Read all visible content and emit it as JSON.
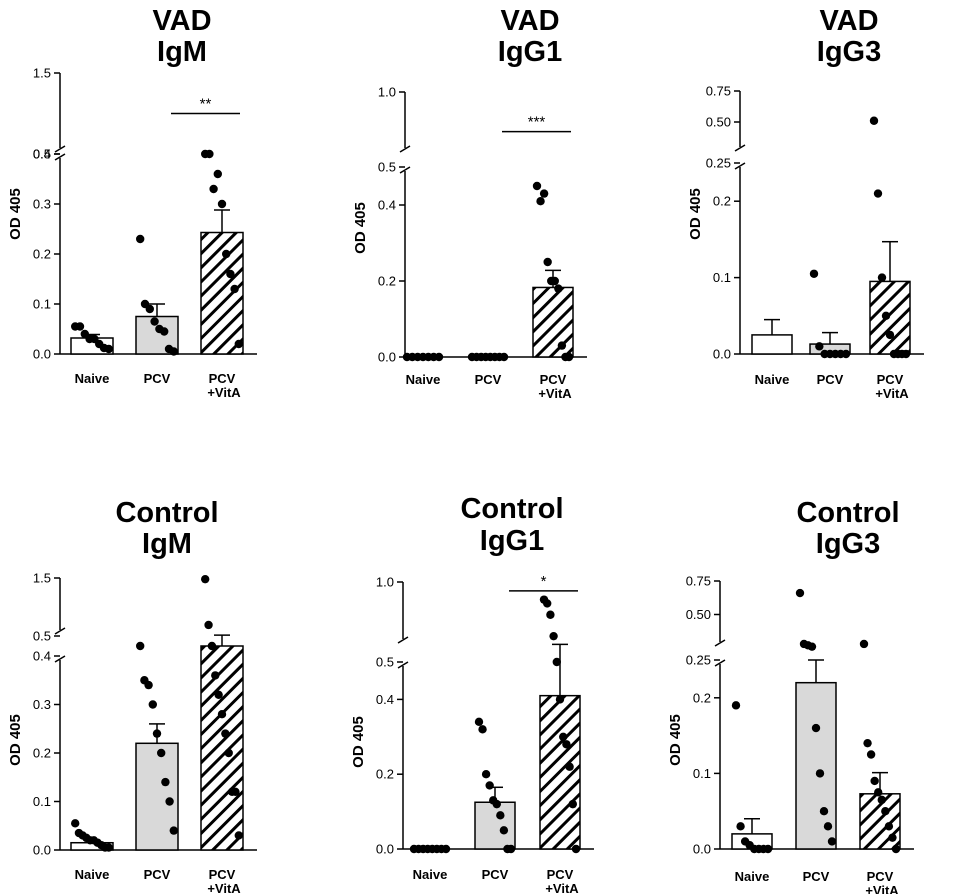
{
  "colors": {
    "naive": "#ffffff",
    "pcv": "#d9d9d9",
    "vita_hatch": "#000000",
    "ink": "#000000"
  },
  "chart_data": [
    {
      "type": "bar",
      "title_line1": "VAD",
      "title_line2": "IgM",
      "ylabel": "OD 405",
      "categories": [
        "Naive",
        "PCV",
        "PCV",
        "+VitA"
      ],
      "groups": [
        {
          "label": "Naive",
          "label2": "",
          "mean": 0.032,
          "sem": 0.007,
          "points": [
            0.055,
            0.055,
            0.04,
            0.03,
            0.03,
            0.02,
            0.012,
            0.01
          ]
        },
        {
          "label": "PCV",
          "label2": "",
          "mean": 0.075,
          "sem": 0.025,
          "points": [
            0.23,
            0.1,
            0.09,
            0.065,
            0.05,
            0.045,
            0.01,
            0.005
          ]
        },
        {
          "label": "PCV",
          "label2": "+VitA",
          "mean": 0.243,
          "sem": 0.045,
          "points": [
            0.48,
            0.47,
            0.33,
            0.36,
            0.3,
            0.2,
            0.16,
            0.13,
            0.02
          ]
        }
      ],
      "axis": {
        "lower": {
          "range": [
            0,
            0.4
          ],
          "ticks": [
            0.0,
            0.1,
            0.2,
            0.3,
            0.4
          ],
          "labels": [
            "0.0",
            "0.1",
            "0.2",
            "0.3",
            "0.4"
          ]
        },
        "upper": {
          "range": [
            0.5,
            1.5
          ],
          "ticks": [
            0.5,
            1.5
          ],
          "labels": [
            "0.5",
            "1.5"
          ]
        }
      },
      "significance": {
        "label": "**",
        "from": 1,
        "to": 2,
        "level": 1.0
      }
    },
    {
      "type": "bar",
      "title_line1": "VAD",
      "title_line2": "IgG1",
      "ylabel": "OD 405",
      "categories": [
        "Naive",
        "PCV",
        "PCV",
        "+VitA"
      ],
      "groups": [
        {
          "label": "Naive",
          "label2": "",
          "mean": 0,
          "sem": 0,
          "points": [
            0,
            0,
            0,
            0,
            0,
            0,
            0
          ]
        },
        {
          "label": "PCV",
          "label2": "",
          "mean": 0,
          "sem": 0,
          "points": [
            0,
            0,
            0,
            0,
            0,
            0,
            0,
            0
          ]
        },
        {
          "label": "PCV",
          "label2": "+VitA",
          "mean": 0.183,
          "sem": 0.045,
          "points": [
            0.45,
            0.41,
            0.43,
            0.25,
            0.2,
            0.2,
            0.18,
            0.03,
            0.0,
            0.0
          ]
        }
      ],
      "axis": {
        "lower": {
          "range": [
            0,
            0.5
          ],
          "ticks": [
            0.0,
            0.2,
            0.4
          ],
          "labels": [
            "0.0",
            "0.2",
            "0.4"
          ]
        },
        "upper": {
          "range": [
            0.5,
            1.0
          ],
          "ticks": [
            0.5,
            1.0
          ],
          "labels": [
            "0.5",
            "1.0"
          ]
        }
      },
      "significance": {
        "label": "***",
        "from": 1,
        "to": 2,
        "level": 0.68
      }
    },
    {
      "type": "bar",
      "title_line1": "VAD",
      "title_line2": "IgG3",
      "ylabel": "OD 405",
      "categories": [
        "Naive",
        "PCV",
        "PCV",
        "+VitA"
      ],
      "groups": [
        {
          "label": "Naive",
          "label2": "",
          "mean": 0.025,
          "sem": 0.02,
          "points": []
        },
        {
          "label": "PCV",
          "label2": "",
          "mean": 0.013,
          "sem": 0.015,
          "points": [
            0.105,
            0.01,
            0.0,
            0.0,
            0.0,
            0.0,
            0.0
          ]
        },
        {
          "label": "PCV",
          "label2": "+VitA",
          "mean": 0.095,
          "sem": 0.052,
          "points": [
            0.51,
            0.21,
            0.1,
            0.05,
            0.025,
            0.0,
            0.0,
            0.0,
            0.0
          ]
        }
      ],
      "axis": {
        "lower": {
          "range": [
            0,
            0.25
          ],
          "ticks": [
            0.0,
            0.1,
            0.2
          ],
          "labels": [
            "0.0",
            "0.1",
            "0.2"
          ]
        },
        "upper": {
          "range": [
            0.25,
            0.75
          ],
          "ticks": [
            0.25,
            0.5,
            0.75
          ],
          "labels": [
            "0.25",
            "0.50",
            "0.75"
          ]
        }
      }
    },
    {
      "type": "bar",
      "title_line1": "Control",
      "title_line2": "IgM",
      "ylabel": "OD 405",
      "categories": [
        "Naive",
        "PCV",
        "PCV",
        "+VitA"
      ],
      "groups": [
        {
          "label": "Naive",
          "label2": "",
          "mean": 0.015,
          "sem": 0.004,
          "points": [
            0.055,
            0.035,
            0.03,
            0.025,
            0.02,
            0.02,
            0.015,
            0.01,
            0.005,
            0.005
          ]
        },
        {
          "label": "PCV",
          "label2": "",
          "mean": 0.22,
          "sem": 0.04,
          "points": [
            0.46,
            0.35,
            0.34,
            0.3,
            0.24,
            0.2,
            0.14,
            0.1,
            0.04
          ]
        },
        {
          "label": "PCV",
          "label2": "+VitA",
          "mean": 0.48,
          "sem": 0.035,
          "points": [
            1.48,
            0.69,
            0.49,
            0.36,
            0.32,
            0.28,
            0.24,
            0.2,
            0.12,
            0.12,
            0.03
          ]
        }
      ],
      "axis": {
        "lower": {
          "range": [
            0,
            0.4
          ],
          "ticks": [
            0.0,
            0.1,
            0.2,
            0.3,
            0.4
          ],
          "labels": [
            "0.0",
            "0.1",
            "0.2",
            "0.3",
            "0.4"
          ]
        },
        "upper": {
          "range": [
            0.5,
            1.5
          ],
          "ticks": [
            0.5,
            1.5
          ],
          "labels": [
            "0.5",
            "1.5"
          ]
        }
      }
    },
    {
      "type": "bar",
      "title_line1": "Control",
      "title_line2": "IgG1",
      "ylabel": "OD 405",
      "categories": [
        "Naive",
        "PCV",
        "PCV",
        "+VitA"
      ],
      "groups": [
        {
          "label": "Naive",
          "label2": "",
          "mean": 0,
          "sem": 0,
          "points": [
            0,
            0,
            0,
            0,
            0,
            0,
            0,
            0
          ]
        },
        {
          "label": "PCV",
          "label2": "",
          "mean": 0.125,
          "sem": 0.04,
          "points": [
            0.34,
            0.32,
            0.2,
            0.17,
            0.13,
            0.12,
            0.09,
            0.05,
            0.0,
            0.0
          ]
        },
        {
          "label": "PCV",
          "label2": "+VitA",
          "mean": 0.41,
          "sem": 0.095,
          "points": [
            0.86,
            0.83,
            0.74,
            0.57,
            0.5,
            0.4,
            0.3,
            0.28,
            0.22,
            0.12,
            0.0
          ]
        }
      ],
      "axis": {
        "lower": {
          "range": [
            0,
            0.5
          ],
          "ticks": [
            0.0,
            0.2,
            0.4
          ],
          "labels": [
            "0.0",
            "0.2",
            "0.4"
          ]
        },
        "upper": {
          "range": [
            0.5,
            1.0
          ],
          "ticks": [
            0.5,
            1.0
          ],
          "labels": [
            "0.5",
            "1.0"
          ]
        }
      },
      "significance": {
        "label": "*",
        "from": 1,
        "to": 2,
        "level": 0.93
      }
    },
    {
      "type": "bar",
      "title_line1": "Control",
      "title_line2": "IgG3",
      "ylabel": "OD 405",
      "categories": [
        "Naive",
        "PCV",
        "PCV",
        "+VitA"
      ],
      "groups": [
        {
          "label": "Naive",
          "label2": "",
          "mean": 0.02,
          "sem": 0.02,
          "points": [
            0.19,
            0.03,
            0.01,
            0.005,
            0.0,
            0.0,
            0.0,
            0.0
          ]
        },
        {
          "label": "PCV",
          "label2": "",
          "mean": 0.22,
          "sem": 0.03,
          "points": [
            0.66,
            0.28,
            0.27,
            0.26,
            0.16,
            0.1,
            0.05,
            0.03,
            0.01
          ]
        },
        {
          "label": "PCV",
          "label2": "+VitA",
          "mean": 0.073,
          "sem": 0.028,
          "points": [
            0.28,
            0.14,
            0.125,
            0.09,
            0.075,
            0.065,
            0.05,
            0.03,
            0.015,
            0.0
          ]
        }
      ],
      "axis": {
        "lower": {
          "range": [
            0,
            0.25
          ],
          "ticks": [
            0.0,
            0.1,
            0.2
          ],
          "labels": [
            "0.0",
            "0.1",
            "0.2"
          ]
        },
        "upper": {
          "range": [
            0.25,
            0.75
          ],
          "ticks": [
            0.25,
            0.5,
            0.75
          ],
          "labels": [
            "0.25",
            "0.50",
            "0.75"
          ]
        }
      }
    }
  ]
}
